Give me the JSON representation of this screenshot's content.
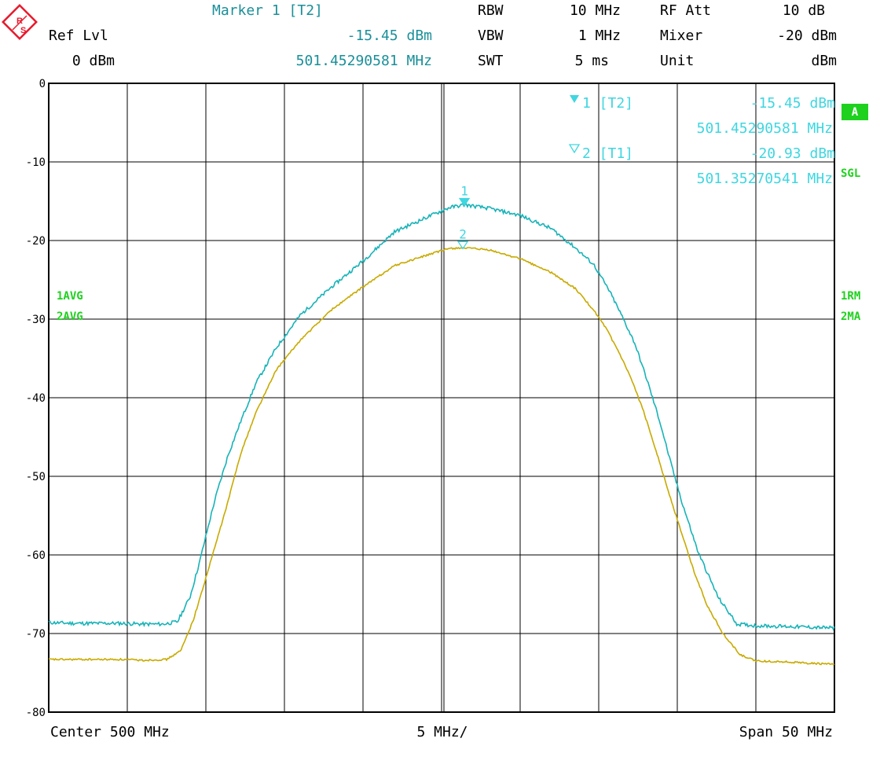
{
  "header": {
    "marker_title": "Marker 1 [T2]",
    "marker_level": "-15.45 dBm",
    "marker_freq": "501.45290581 MHz",
    "ref_lvl_label": "Ref Lvl",
    "ref_lvl_value": "0 dBm",
    "rbw_label": "RBW",
    "rbw_value": "10 MHz",
    "vbw_label": "VBW",
    "vbw_value": "1 MHz",
    "swt_label": "SWT",
    "swt_value": "5 ms",
    "rfatt_label": "RF Att",
    "rfatt_value": "10 dB",
    "mixer_label": "Mixer",
    "mixer_value": "-20 dBm",
    "unit_label": "Unit",
    "unit_value": "dBm"
  },
  "marker_table": {
    "m1_label": "1 [T2]",
    "m1_level": "-15.45 dBm",
    "m1_freq": "501.45290581 MHz",
    "m2_label": "2 [T1]",
    "m2_level": "-20.93 dBm",
    "m2_freq": "501.35270541 MHz"
  },
  "side_labels": {
    "a_box": "A",
    "sgl": "SGL",
    "avg1": "1AVG",
    "avg2": "2AVG",
    "rm1": "1RM",
    "ma2": "2MA"
  },
  "footer": {
    "center": "Center 500 MHz",
    "div": "5 MHz/",
    "span": "Span 50 MHz"
  },
  "colors": {
    "trace1": "#17b3b8",
    "trace2": "#c8aa00",
    "marker_text": "#3fd6e0",
    "header_teal": "#1a8f99",
    "status_green": "#1ed11e",
    "grid": "#000000"
  },
  "chart_data": {
    "type": "line",
    "xlabel": "",
    "ylabel": "",
    "xlim": [
      475,
      525
    ],
    "ylim": [
      -80,
      0
    ],
    "y_ticks": [
      "0",
      "-10",
      "-20",
      "-30",
      "-40",
      "-50",
      "-60",
      "-70",
      "-80"
    ],
    "series": [
      {
        "name": "1 [T2]",
        "x": [
          475,
          476.5,
          478,
          479.5,
          481,
          482.3,
          483.2,
          484,
          484.6,
          485.1,
          485.6,
          486.4,
          487.2,
          488.2,
          489.5,
          491,
          493,
          495,
          497,
          499,
          500.5,
          501.45,
          503,
          505,
          507,
          508.5,
          509.7,
          510.7,
          511.5,
          512.3,
          513.1,
          513.9,
          514.6,
          515.3,
          516.3,
          517.6,
          518.8,
          520,
          522,
          523.5,
          525
        ],
        "y": [
          -68.6,
          -68.7,
          -68.7,
          -68.7,
          -68.8,
          -68.8,
          -68.5,
          -65.3,
          -60.9,
          -56.8,
          -52.8,
          -47.4,
          -43.1,
          -38.1,
          -33.6,
          -29.5,
          -25.9,
          -22.6,
          -18.9,
          -17.1,
          -15.8,
          -15.45,
          -15.9,
          -16.8,
          -18.5,
          -20.9,
          -23.1,
          -26.5,
          -29.7,
          -33.1,
          -37.9,
          -43.1,
          -48.4,
          -53.3,
          -59.5,
          -65.4,
          -68.8,
          -69.0,
          -69.1,
          -69.2,
          -69.3
        ]
      },
      {
        "name": "2 [T1]",
        "x": [
          475,
          476.5,
          478,
          479.5,
          481,
          482.5,
          483.4,
          484.2,
          484.8,
          485.5,
          486.3,
          487.2,
          488.2,
          489.5,
          491,
          493,
          495,
          497,
          499,
          500.5,
          501.35,
          503,
          505,
          507,
          508.5,
          509.7,
          510.5,
          511.3,
          512,
          512.8,
          513.6,
          514.4,
          515.3,
          516.1,
          516.9,
          517.9,
          519,
          520,
          522,
          523.5,
          525
        ],
        "y": [
          -73.3,
          -73.3,
          -73.3,
          -73.3,
          -73.4,
          -73.3,
          -72.2,
          -68.3,
          -64.3,
          -59.5,
          -54.0,
          -47.2,
          -41.8,
          -36.4,
          -32.7,
          -28.8,
          -25.9,
          -23.2,
          -21.9,
          -21.0,
          -20.93,
          -21.2,
          -22.3,
          -24.1,
          -26.1,
          -28.9,
          -31.3,
          -34.3,
          -37.3,
          -41.4,
          -46.4,
          -51.7,
          -57.4,
          -62.3,
          -66.4,
          -70.0,
          -72.7,
          -73.5,
          -73.6,
          -73.8,
          -73.9
        ]
      }
    ],
    "markers": [
      {
        "id": "1",
        "trace": 0,
        "x": 501.45290581,
        "y": -15.45
      },
      {
        "id": "2",
        "trace": 1,
        "x": 501.35270541,
        "y": -20.93
      }
    ]
  }
}
